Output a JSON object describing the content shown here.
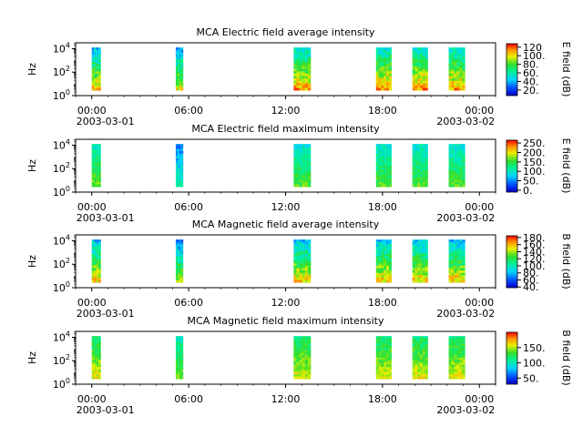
{
  "chart_data": [
    {
      "type": "heatmap",
      "title": "MCA  Electric field average intensity",
      "ylabel": "Hz",
      "y_ticks": [
        "10",
        "10",
        "10"
      ],
      "y_tick_exps": [
        "0",
        "2",
        "4"
      ],
      "x_ticks": [
        "00:00",
        "06:00",
        "12:00",
        "18:00",
        "00:00"
      ],
      "x_date_start": "2003-03-01",
      "x_date_end": "2003-03-02",
      "colorbar_label": "E field (dB)",
      "colorbar_ticks": [
        "20.",
        "40.",
        "60.",
        "80.",
        "100.",
        "120"
      ],
      "colorbar_values": [
        20,
        40,
        60,
        80,
        100,
        120
      ],
      "colorbar_range": [
        7,
        128
      ],
      "x_range_hours": [
        -1,
        25
      ],
      "y_range_log10": [
        0,
        4.5
      ],
      "passes": [
        {
          "start_h": 0.0,
          "end_h": 0.55,
          "level": 0.55
        },
        {
          "start_h": 5.2,
          "end_h": 5.65,
          "level": 0.5
        },
        {
          "start_h": 12.5,
          "end_h": 13.55,
          "level": 0.6
        },
        {
          "start_h": 17.6,
          "end_h": 18.55,
          "level": 0.62
        },
        {
          "start_h": 19.85,
          "end_h": 20.8,
          "level": 0.62
        },
        {
          "start_h": 22.1,
          "end_h": 23.1,
          "level": 0.6
        }
      ]
    },
    {
      "type": "heatmap",
      "title": "MCA  Electric field maximum intensity",
      "ylabel": "Hz",
      "y_ticks": [
        "10",
        "10",
        "10"
      ],
      "y_tick_exps": [
        "0",
        "2",
        "4"
      ],
      "x_ticks": [
        "00:00",
        "06:00",
        "12:00",
        "18:00",
        "00:00"
      ],
      "x_date_start": "2003-03-01",
      "x_date_end": "2003-03-02",
      "colorbar_label": "E field (dB)",
      "colorbar_ticks": [
        "0.",
        "50.",
        "100.",
        "150.",
        "200.",
        "250."
      ],
      "colorbar_values": [
        0,
        50,
        100,
        150,
        200,
        250
      ],
      "colorbar_range": [
        -10,
        265
      ],
      "x_range_hours": [
        -1,
        25
      ],
      "y_range_log10": [
        0,
        4.5
      ],
      "passes": [
        {
          "start_h": 0.0,
          "end_h": 0.55,
          "level": 0.45
        },
        {
          "start_h": 5.2,
          "end_h": 5.65,
          "level": 0.25
        },
        {
          "start_h": 12.5,
          "end_h": 13.55,
          "level": 0.42
        },
        {
          "start_h": 17.6,
          "end_h": 18.55,
          "level": 0.42
        },
        {
          "start_h": 19.85,
          "end_h": 20.8,
          "level": 0.42
        },
        {
          "start_h": 22.1,
          "end_h": 23.1,
          "level": 0.42
        }
      ]
    },
    {
      "type": "heatmap",
      "title": "MCA  Magnetic field average intensity",
      "ylabel": "Hz",
      "y_ticks": [
        "10",
        "10",
        "10"
      ],
      "y_tick_exps": [
        "0",
        "2",
        "4"
      ],
      "x_ticks": [
        "00:00",
        "06:00",
        "12:00",
        "18:00",
        "00:00"
      ],
      "x_date_start": "2003-03-01",
      "x_date_end": "2003-03-02",
      "colorbar_label": "B field (dB)",
      "colorbar_ticks": [
        "40.",
        "60.",
        "80.",
        "100.",
        "120.",
        "140.",
        "160.",
        "180."
      ],
      "colorbar_values": [
        40,
        60,
        80,
        100,
        120,
        140,
        160,
        180
      ],
      "colorbar_range": [
        38,
        185
      ],
      "x_range_hours": [
        -1,
        25
      ],
      "y_range_log10": [
        0,
        4.5
      ],
      "passes": [
        {
          "start_h": 0.0,
          "end_h": 0.55,
          "level": 0.55
        },
        {
          "start_h": 5.2,
          "end_h": 5.65,
          "level": 0.45
        },
        {
          "start_h": 12.5,
          "end_h": 13.55,
          "level": 0.55
        },
        {
          "start_h": 17.6,
          "end_h": 18.55,
          "level": 0.55
        },
        {
          "start_h": 19.85,
          "end_h": 20.8,
          "level": 0.55
        },
        {
          "start_h": 22.1,
          "end_h": 23.1,
          "level": 0.55
        }
      ]
    },
    {
      "type": "heatmap",
      "title": "MCA  Magnetic field maximum intensity",
      "ylabel": "Hz",
      "y_ticks": [
        "10",
        "10",
        "10"
      ],
      "y_tick_exps": [
        "0",
        "2",
        "4"
      ],
      "x_ticks": [
        "00:00",
        "06:00",
        "12:00",
        "18:00",
        "00:00"
      ],
      "x_date_start": "2003-03-01",
      "x_date_end": "2003-03-02",
      "colorbar_label": "B field (dB)",
      "colorbar_ticks": [
        "50.",
        "100.",
        "150."
      ],
      "colorbar_values": [
        50,
        100,
        150
      ],
      "colorbar_range": [
        30,
        200
      ],
      "x_range_hours": [
        -1,
        25
      ],
      "y_range_log10": [
        0,
        4.5
      ],
      "passes": [
        {
          "start_h": 0.0,
          "end_h": 0.55,
          "level": 0.55
        },
        {
          "start_h": 5.2,
          "end_h": 5.65,
          "level": 0.45
        },
        {
          "start_h": 12.5,
          "end_h": 13.55,
          "level": 0.55
        },
        {
          "start_h": 17.6,
          "end_h": 18.55,
          "level": 0.55
        },
        {
          "start_h": 19.85,
          "end_h": 20.8,
          "level": 0.55
        },
        {
          "start_h": 22.1,
          "end_h": 23.1,
          "level": 0.55
        }
      ]
    }
  ]
}
